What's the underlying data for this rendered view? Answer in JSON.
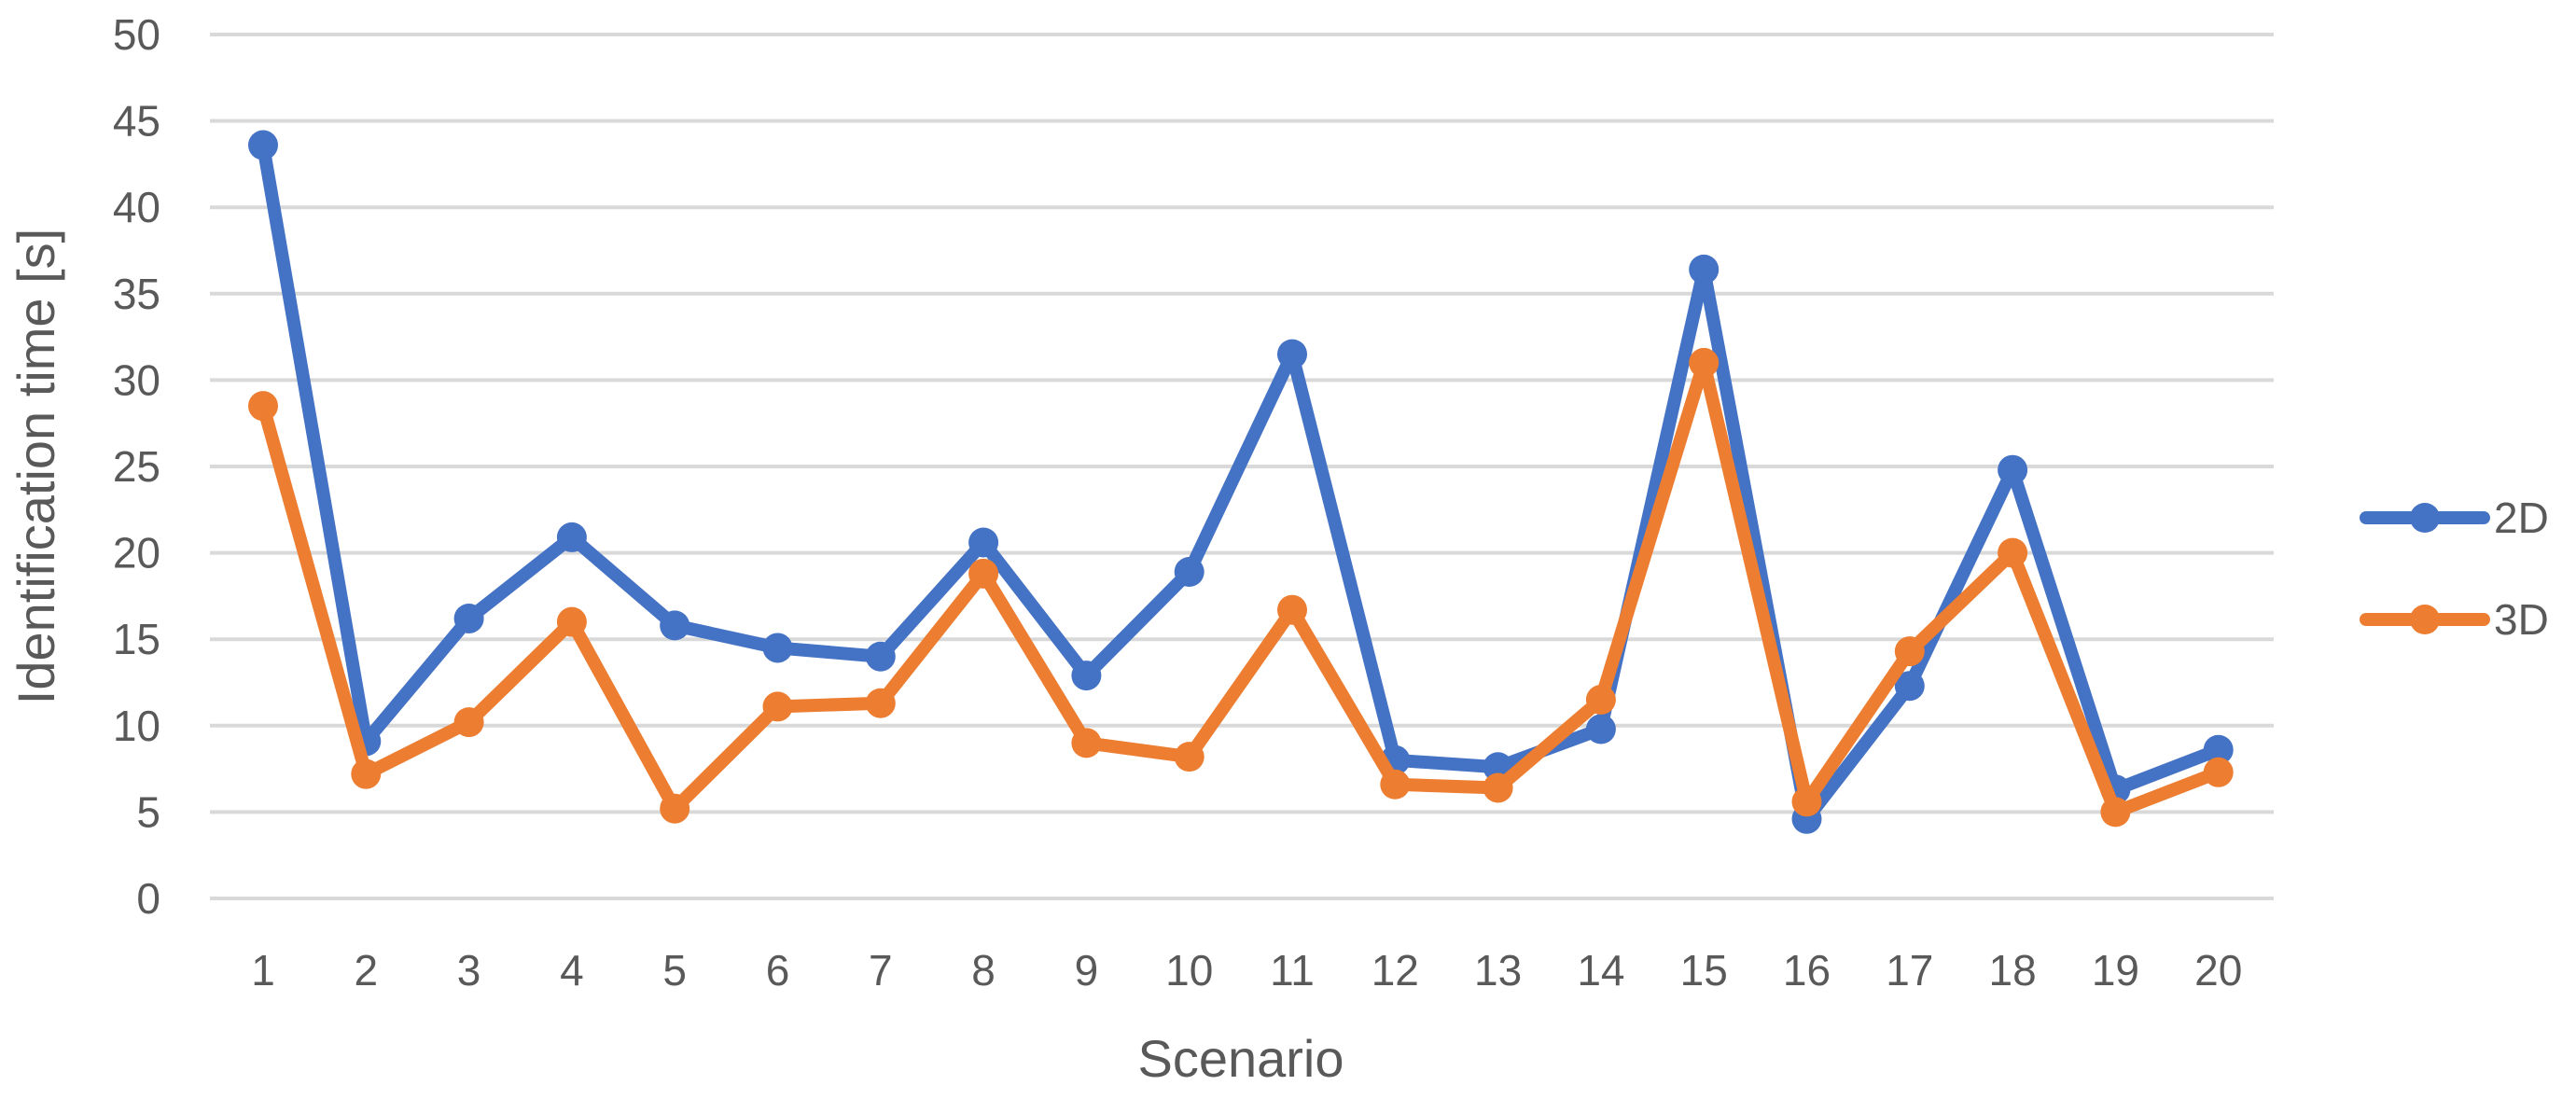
{
  "chart_data": {
    "type": "line",
    "title": "",
    "xlabel": "Scenario",
    "ylabel": "Identification time [s]",
    "ylim": [
      0,
      50
    ],
    "yticks": [
      0,
      5,
      10,
      15,
      20,
      25,
      30,
      35,
      40,
      45,
      50
    ],
    "x": [
      1,
      2,
      3,
      4,
      5,
      6,
      7,
      8,
      9,
      10,
      11,
      12,
      13,
      14,
      15,
      16,
      17,
      18,
      19,
      20
    ],
    "grid": "horizontal",
    "legend_position": "right",
    "series": [
      {
        "name": "2D",
        "color": "#4472C4",
        "values": [
          43.6,
          9.1,
          16.2,
          20.9,
          15.8,
          14.5,
          14.0,
          20.6,
          12.9,
          18.9,
          31.5,
          8.0,
          7.6,
          9.8,
          36.4,
          4.6,
          12.3,
          24.8,
          6.3,
          8.6
        ]
      },
      {
        "name": "3D",
        "color": "#ED7D31",
        "values": [
          28.5,
          7.2,
          10.2,
          16.0,
          5.2,
          11.1,
          11.3,
          18.8,
          9.0,
          8.2,
          16.7,
          6.6,
          6.4,
          11.5,
          31.0,
          5.6,
          14.3,
          20.0,
          5.0,
          7.3
        ]
      }
    ]
  }
}
